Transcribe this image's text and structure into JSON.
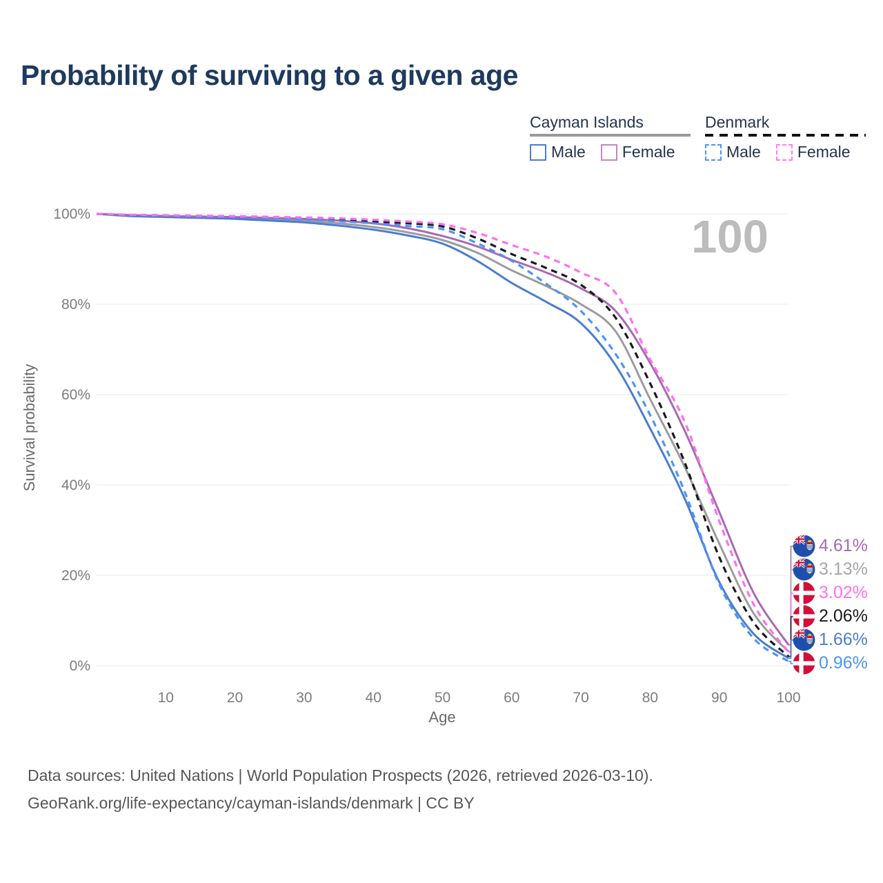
{
  "title": "Probability of surviving to a given age",
  "watermark_age": "100",
  "legend": {
    "groups": [
      {
        "label": "Cayman Islands",
        "line_style": "solid",
        "underline_color": "#999999",
        "items": [
          {
            "label": "Male",
            "color": "#4a7dd1"
          },
          {
            "label": "Female",
            "color": "#c287c2"
          }
        ]
      },
      {
        "label": "Denmark",
        "line_style": "dashed",
        "underline_color": "#111111",
        "items": [
          {
            "label": "Male",
            "color": "#4d94f7"
          },
          {
            "label": "Female",
            "color": "#ff7df2"
          }
        ]
      }
    ]
  },
  "chart_data": {
    "type": "line",
    "title": "Probability of surviving to a given age",
    "xlabel": "Age",
    "ylabel": "Survival probability",
    "xlim": [
      0,
      100
    ],
    "ylim": [
      0,
      100
    ],
    "grid": "horizontal",
    "legend_position": "top-right",
    "x_ticks": [
      "10",
      "20",
      "30",
      "40",
      "50",
      "60",
      "70",
      "80",
      "90",
      "100"
    ],
    "y_ticks": [
      "100%",
      "80%",
      "60%",
      "40%",
      "20%",
      "0%"
    ],
    "y_tick_values": [
      100,
      80,
      60,
      40,
      20,
      0
    ],
    "x": [
      0,
      5,
      10,
      15,
      20,
      25,
      30,
      35,
      40,
      45,
      50,
      55,
      60,
      65,
      70,
      75,
      80,
      85,
      90,
      95,
      100
    ],
    "series": [
      {
        "name": "Cayman Islands Female",
        "country": "Cayman Islands",
        "sex": "Female",
        "style": "solid",
        "color": "#a76ab0",
        "end_value_pct": 4.61,
        "values": [
          100,
          99.7,
          99.5,
          99.4,
          99.3,
          99.1,
          98.9,
          98.5,
          97.9,
          96.8,
          95.1,
          92.8,
          89.8,
          87.0,
          83.5,
          78.5,
          67.0,
          52.0,
          34.0,
          16.0,
          4.61
        ]
      },
      {
        "name": "Cayman Islands",
        "country": "Cayman Islands",
        "sex": "Both",
        "style": "solid",
        "color": "#9c9c9c",
        "end_value_pct": 3.13,
        "values": [
          100,
          99.6,
          99.4,
          99.2,
          99.1,
          98.8,
          98.5,
          97.9,
          97.1,
          95.9,
          94.2,
          91.4,
          87.5,
          84.0,
          80.0,
          74.0,
          59.0,
          44.0,
          27.0,
          11.5,
          3.13
        ]
      },
      {
        "name": "Denmark Female",
        "country": "Denmark",
        "sex": "Female",
        "style": "dashed",
        "color": "#ff6ff0",
        "end_value_pct": 3.02,
        "values": [
          100,
          99.8,
          99.7,
          99.6,
          99.5,
          99.35,
          99.2,
          99.0,
          98.7,
          98.3,
          97.7,
          95.8,
          93.1,
          90.5,
          87.0,
          82.5,
          67.8,
          54.0,
          32.0,
          13.5,
          3.02
        ]
      },
      {
        "name": "Denmark",
        "country": "Denmark",
        "sex": "Both",
        "style": "dashed",
        "color": "#1a1a1a",
        "end_value_pct": 2.06,
        "values": [
          100,
          99.7,
          99.6,
          99.5,
          99.4,
          99.2,
          99.0,
          98.7,
          98.3,
          97.9,
          97.2,
          94.6,
          91.1,
          88.0,
          84.3,
          77.0,
          62.5,
          45.0,
          24.0,
          9.5,
          2.06
        ]
      },
      {
        "name": "Cayman Islands Male",
        "country": "Cayman Islands",
        "sex": "Male",
        "style": "solid",
        "color": "#4a7dd1",
        "end_value_pct": 1.66,
        "values": [
          100,
          99.5,
          99.3,
          99.1,
          98.9,
          98.5,
          98.1,
          97.4,
          96.5,
          95.2,
          93.4,
          89.6,
          84.7,
          80.5,
          75.8,
          66.5,
          52.5,
          37.0,
          18.5,
          7.0,
          1.66
        ]
      },
      {
        "name": "Denmark Male",
        "country": "Denmark",
        "sex": "Male",
        "style": "dashed",
        "color": "#4d94f7",
        "end_value_pct": 0.96,
        "values": [
          100,
          99.7,
          99.6,
          99.45,
          99.3,
          99.05,
          98.8,
          98.4,
          97.9,
          97.3,
          96.6,
          93.5,
          89.6,
          84.5,
          78.5,
          69.0,
          55.5,
          38.5,
          18.0,
          6.0,
          0.96
        ]
      }
    ]
  },
  "end_labels": [
    {
      "value": "4.61%",
      "flag": "cayman",
      "flag_name": "cayman-islands-flag-icon",
      "color": "#a76ab0"
    },
    {
      "value": "3.13%",
      "flag": "cayman",
      "flag_name": "cayman-islands-flag-icon",
      "color": "#a6a6a6"
    },
    {
      "value": "3.02%",
      "flag": "denmark",
      "flag_name": "denmark-flag-icon",
      "color": "#ff6ff0"
    },
    {
      "value": "2.06%",
      "flag": "denmark",
      "flag_name": "denmark-flag-icon",
      "color": "#1a1a1a"
    },
    {
      "value": "1.66%",
      "flag": "cayman",
      "flag_name": "cayman-islands-flag-icon",
      "color": "#4a7dd1"
    },
    {
      "value": "0.96%",
      "flag": "denmark",
      "flag_name": "denmark-flag-icon",
      "color": "#4d94f7"
    }
  ],
  "footer": {
    "line1": "Data sources: United Nations | World Population Prospects (2026, retrieved 2026-03-10).",
    "line2": "GeoRank.org/life-expectancy/cayman-islands/denmark | CC BY"
  }
}
